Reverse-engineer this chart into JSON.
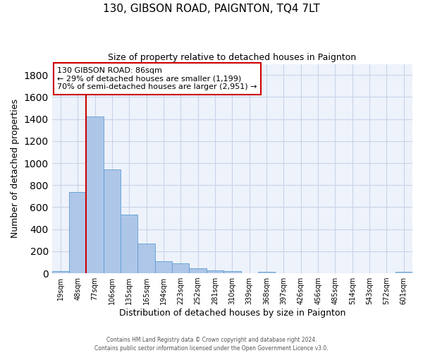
{
  "title": "130, GIBSON ROAD, PAIGNTON, TQ4 7LT",
  "subtitle": "Size of property relative to detached houses in Paignton",
  "xlabel": "Distribution of detached houses by size in Paignton",
  "ylabel": "Number of detached properties",
  "bar_labels": [
    "19sqm",
    "48sqm",
    "77sqm",
    "106sqm",
    "135sqm",
    "165sqm",
    "194sqm",
    "223sqm",
    "252sqm",
    "281sqm",
    "310sqm",
    "339sqm",
    "368sqm",
    "397sqm",
    "426sqm",
    "456sqm",
    "485sqm",
    "514sqm",
    "543sqm",
    "572sqm",
    "601sqm"
  ],
  "bar_values": [
    20,
    735,
    1425,
    940,
    530,
    270,
    108,
    93,
    48,
    25,
    18,
    0,
    12,
    0,
    0,
    0,
    0,
    0,
    0,
    0,
    13
  ],
  "bar_color": "#aec6e8",
  "bar_edgecolor": "#5a9fd4",
  "ylim": [
    0,
    1900
  ],
  "yticks": [
    0,
    200,
    400,
    600,
    800,
    1000,
    1200,
    1400,
    1600,
    1800
  ],
  "annotation_title": "130 GIBSON ROAD: 86sqm",
  "annotation_line1": "← 29% of detached houses are smaller (1,199)",
  "annotation_line2": "70% of semi-detached houses are larger (2,951) →",
  "annotation_box_color": "#ffffff",
  "annotation_box_edgecolor": "#cc0000",
  "vline_color": "#cc0000",
  "vline_x_index": 1.5,
  "footer1": "Contains HM Land Registry data © Crown copyright and database right 2024.",
  "footer2": "Contains public sector information licensed under the Open Government Licence v3.0.",
  "background_color": "#eef2fb",
  "grid_color": "#c8d4e8"
}
